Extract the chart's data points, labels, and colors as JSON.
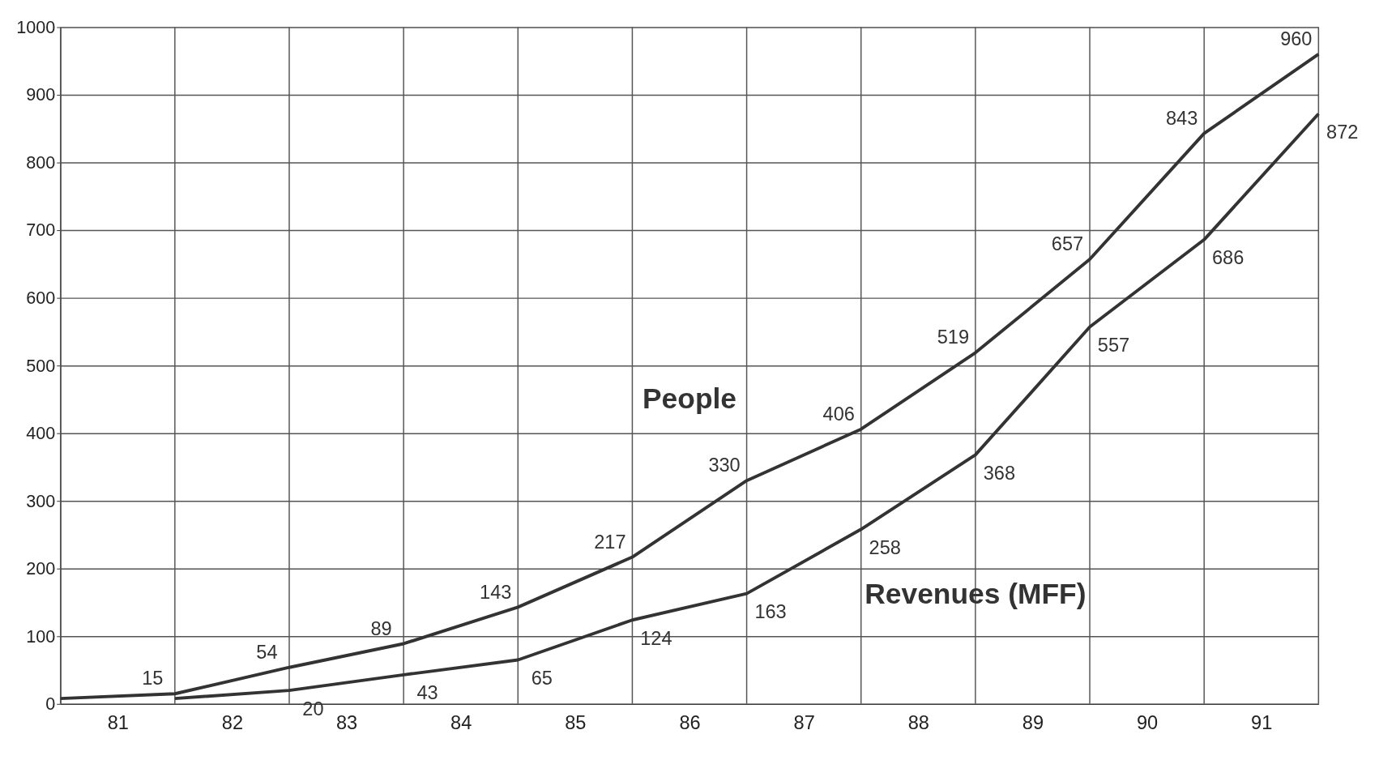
{
  "chart_data": {
    "type": "line",
    "xlim": [
      80.5,
      91.5
    ],
    "xticks": [
      81,
      82,
      83,
      84,
      85,
      86,
      87,
      88,
      89,
      90,
      91,
      {
        "value": 80.5,
        "label": null
      },
      {
        "value": 81.5,
        "label": null
      },
      {
        "value": 82.5,
        "label": null
      },
      {
        "value": 83.5,
        "label": null
      },
      {
        "value": 84.5,
        "label": null
      },
      {
        "value": 85.5,
        "label": null
      },
      {
        "value": 86.5,
        "label": null
      },
      {
        "value": 87.5,
        "label": null
      },
      {
        "value": 88.5,
        "label": null
      },
      {
        "value": 89.5,
        "label": null
      },
      {
        "value": 90.5,
        "label": null
      },
      {
        "value": 91.5,
        "label": null
      }
    ],
    "ylim": [
      0,
      1000
    ],
    "yticks": [
      0,
      100,
      200,
      300,
      400,
      500,
      600,
      700,
      800,
      900,
      1000
    ],
    "grid": true,
    "marker": "none",
    "line_style": "solid",
    "series": [
      {
        "name": "People",
        "color": "#333333",
        "x": [
          80.5,
          81.5,
          82.5,
          83.5,
          84.5,
          85.5,
          86.5,
          87.5,
          88.5,
          89.5,
          90.5,
          91.5
        ],
        "values": [
          8,
          15,
          54,
          89,
          143,
          217,
          330,
          406,
          519,
          657,
          843,
          960
        ],
        "value_labels": [
          null,
          "15",
          "54",
          "89",
          "143",
          "217",
          "330",
          "406",
          "519",
          "657",
          "843",
          "960"
        ]
      },
      {
        "name": "Revenues  (MFF)",
        "color": "#333333",
        "x": [
          81.5,
          82.5,
          83.5,
          84.5,
          85.5,
          86.5,
          87.5,
          88.5,
          89.5,
          90.5,
          91.5
        ],
        "values": [
          8,
          20,
          43,
          65,
          124,
          163,
          258,
          368,
          557,
          686,
          872
        ],
        "value_labels": [
          null,
          "20",
          "43",
          "65",
          "124",
          "163",
          "258",
          "368",
          "557",
          "686",
          "872"
        ]
      }
    ]
  }
}
